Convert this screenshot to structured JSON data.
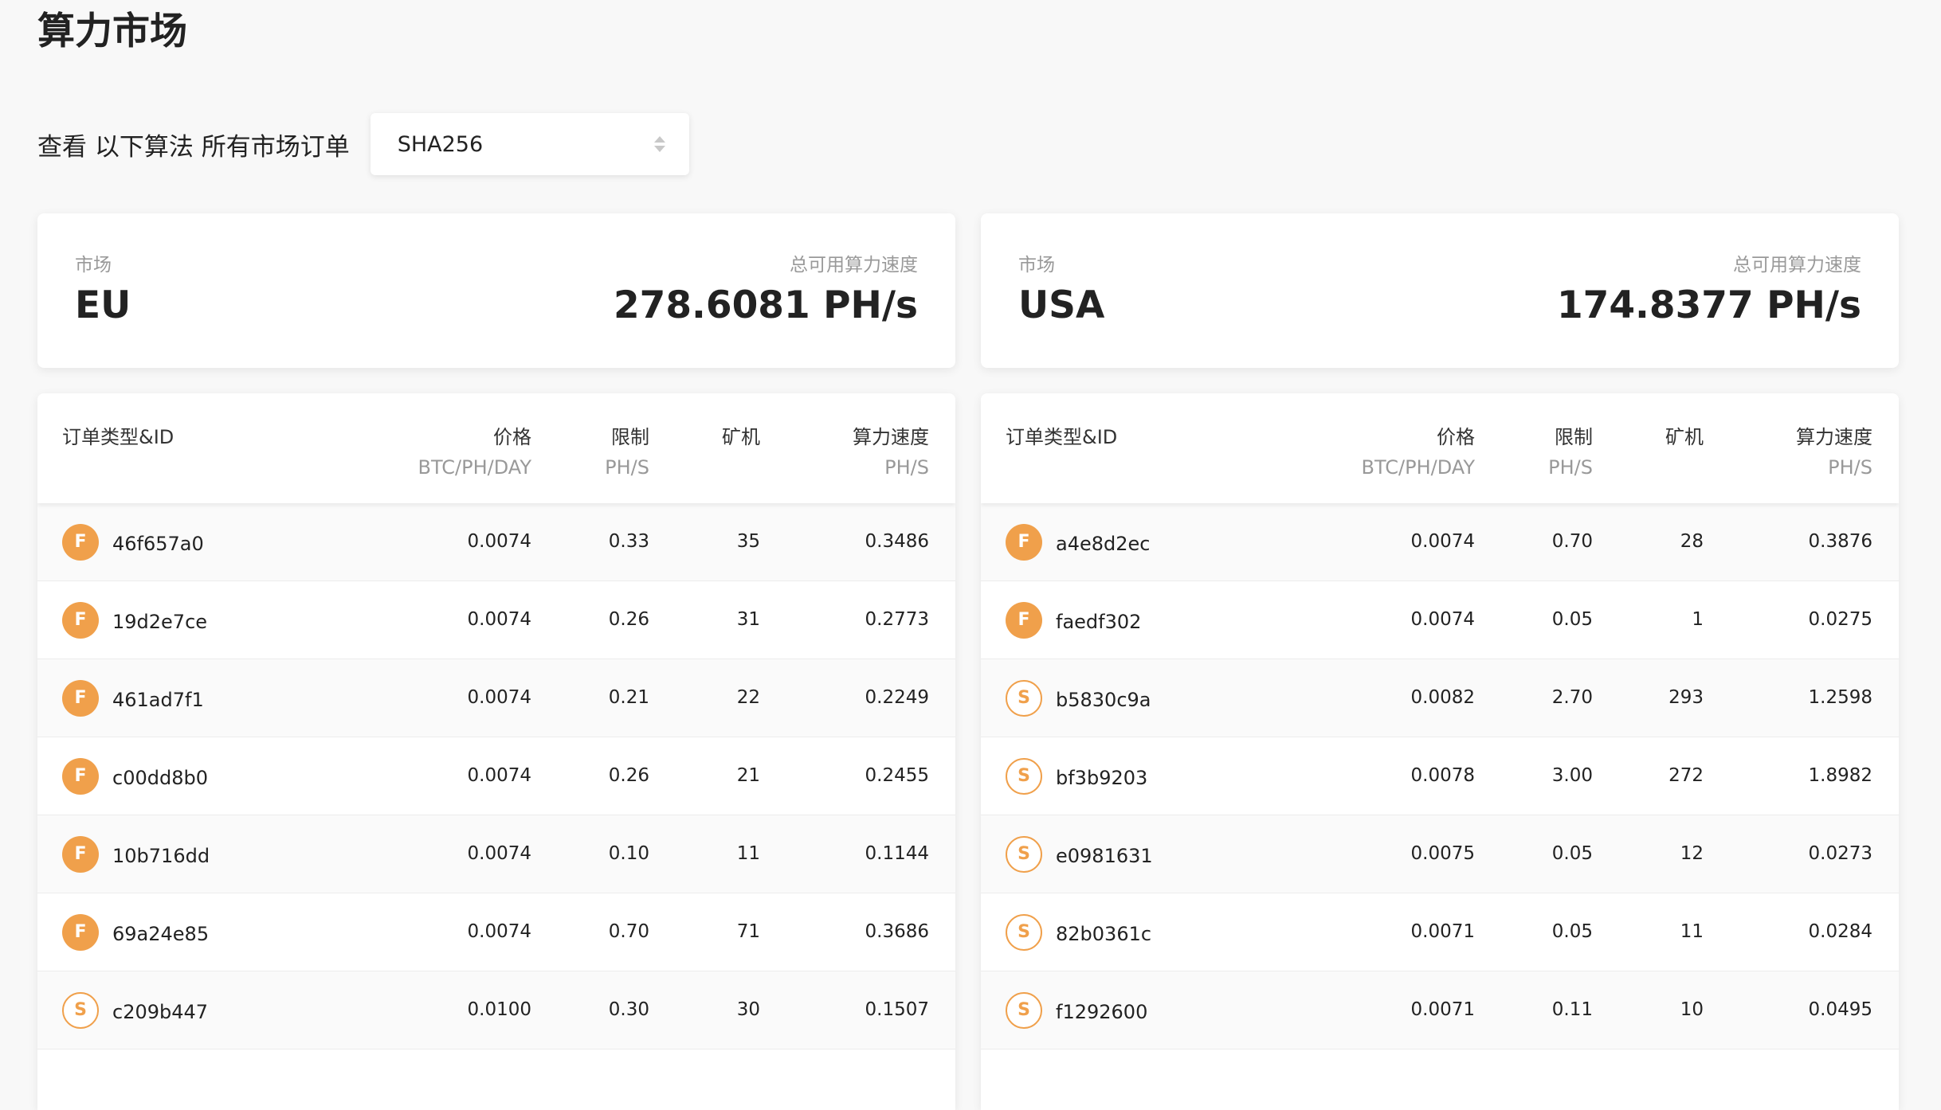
{
  "page": {
    "title": "算力市场"
  },
  "filter": {
    "label": "查看 以下算法 所有市场订单",
    "selected_algorithm": "SHA256"
  },
  "colors": {
    "accent": "#f0a04b",
    "background": "#f8f8f8"
  },
  "table_headers": {
    "type_id": "订单类型&ID",
    "price": "价格",
    "price_unit": "BTC/PH/DAY",
    "limit": "限制",
    "limit_unit": "PH/S",
    "miners": "矿机",
    "speed": "算力速度",
    "speed_unit": "PH/S"
  },
  "markets": [
    {
      "market_label": "市场",
      "market_name": "EU",
      "speed_label": "总可用算力速度",
      "total_speed": "278.6081 PH/s",
      "orders": [
        {
          "type": "F",
          "id": "46f657a0",
          "price": "0.0074",
          "limit": "0.33",
          "miners": "35",
          "speed": "0.3486"
        },
        {
          "type": "F",
          "id": "19d2e7ce",
          "price": "0.0074",
          "limit": "0.26",
          "miners": "31",
          "speed": "0.2773"
        },
        {
          "type": "F",
          "id": "461ad7f1",
          "price": "0.0074",
          "limit": "0.21",
          "miners": "22",
          "speed": "0.2249"
        },
        {
          "type": "F",
          "id": "c00dd8b0",
          "price": "0.0074",
          "limit": "0.26",
          "miners": "21",
          "speed": "0.2455"
        },
        {
          "type": "F",
          "id": "10b716dd",
          "price": "0.0074",
          "limit": "0.10",
          "miners": "11",
          "speed": "0.1144"
        },
        {
          "type": "F",
          "id": "69a24e85",
          "price": "0.0074",
          "limit": "0.70",
          "miners": "71",
          "speed": "0.3686"
        },
        {
          "type": "S",
          "id": "c209b447",
          "price": "0.0100",
          "limit": "0.30",
          "miners": "30",
          "speed": "0.1507"
        }
      ]
    },
    {
      "market_label": "市场",
      "market_name": "USA",
      "speed_label": "总可用算力速度",
      "total_speed": "174.8377 PH/s",
      "orders": [
        {
          "type": "F",
          "id": "a4e8d2ec",
          "price": "0.0074",
          "limit": "0.70",
          "miners": "28",
          "speed": "0.3876"
        },
        {
          "type": "F",
          "id": "faedf302",
          "price": "0.0074",
          "limit": "0.05",
          "miners": "1",
          "speed": "0.0275"
        },
        {
          "type": "S",
          "id": "b5830c9a",
          "price": "0.0082",
          "limit": "2.70",
          "miners": "293",
          "speed": "1.2598"
        },
        {
          "type": "S",
          "id": "bf3b9203",
          "price": "0.0078",
          "limit": "3.00",
          "miners": "272",
          "speed": "1.8982"
        },
        {
          "type": "S",
          "id": "e0981631",
          "price": "0.0075",
          "limit": "0.05",
          "miners": "12",
          "speed": "0.0273"
        },
        {
          "type": "S",
          "id": "82b0361c",
          "price": "0.0071",
          "limit": "0.05",
          "miners": "11",
          "speed": "0.0284"
        },
        {
          "type": "S",
          "id": "f1292600",
          "price": "0.0071",
          "limit": "0.11",
          "miners": "10",
          "speed": "0.0495"
        }
      ]
    }
  ]
}
